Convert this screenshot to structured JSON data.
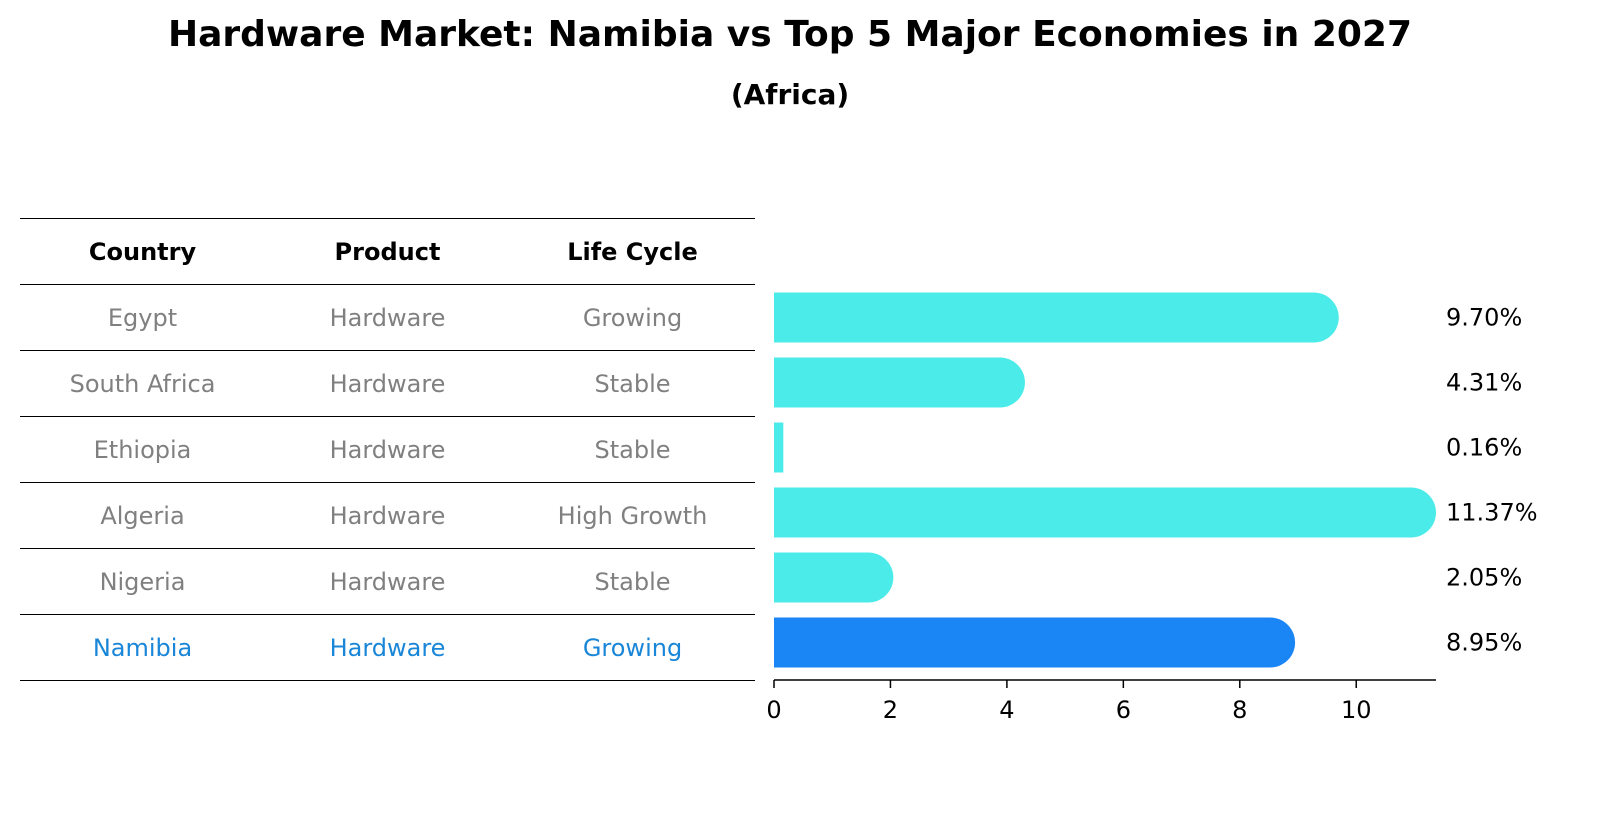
{
  "chart_data": {
    "type": "bar",
    "orientation": "horizontal",
    "title": "Hardware Market: Namibia vs Top 5 Major Economies in 2027",
    "subtitle": "(Africa)",
    "table": {
      "columns": [
        "Country",
        "Product",
        "Life Cycle"
      ],
      "rows": [
        [
          "Egypt",
          "Hardware",
          "Growing"
        ],
        [
          "South Africa",
          "Hardware",
          "Stable"
        ],
        [
          "Ethiopia",
          "Hardware",
          "Stable"
        ],
        [
          "Algeria",
          "Hardware",
          "High Growth"
        ],
        [
          "Nigeria",
          "Hardware",
          "Stable"
        ],
        [
          "Namibia",
          "Hardware",
          "Growing"
        ]
      ]
    },
    "categories": [
      "Egypt",
      "South Africa",
      "Ethiopia",
      "Algeria",
      "Nigeria",
      "Namibia"
    ],
    "values": [
      9.7,
      4.31,
      0.16,
      11.37,
      2.05,
      8.95
    ],
    "value_labels": [
      "9.70%",
      "4.31%",
      "0.16%",
      "11.37%",
      "2.05%",
      "8.95%"
    ],
    "highlight": "Namibia",
    "xlim": [
      0,
      11.37
    ],
    "xticks": [
      0,
      2,
      4,
      6,
      8,
      10
    ],
    "colors": {
      "bar": "#4bebea",
      "highlight": "#1a86f5",
      "highlight_text": "#1a86d8"
    }
  }
}
